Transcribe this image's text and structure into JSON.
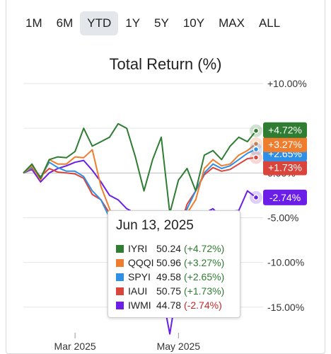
{
  "range_tabs": [
    {
      "label": "1M",
      "active": false
    },
    {
      "label": "6M",
      "active": false
    },
    {
      "label": "YTD",
      "active": true
    },
    {
      "label": "1Y",
      "active": false
    },
    {
      "label": "5Y",
      "active": false
    },
    {
      "label": "10Y",
      "active": false
    },
    {
      "label": "MAX",
      "active": false
    },
    {
      "label": "ALL",
      "active": false
    }
  ],
  "colors": {
    "IYRI": "#2e7d32",
    "QQQI": "#ef7d2e",
    "SPYI": "#2f8fe6",
    "IAUI": "#d9453b",
    "IWMI": "#6a1ee8",
    "grid": "#e6e6e6",
    "positive": "#2e7d32",
    "negative": "#c62828"
  },
  "tooltip": {
    "date": "Jun 13, 2025",
    "rows": [
      {
        "name": "IYRI",
        "value": "50.24",
        "change": "(+4.72%)",
        "tone": "positive"
      },
      {
        "name": "QQQI",
        "value": "50.96",
        "change": "(+3.27%)",
        "tone": "positive"
      },
      {
        "name": "SPYI",
        "value": "49.58",
        "change": "(+2.65%)",
        "tone": "positive"
      },
      {
        "name": "IAUI",
        "value": "50.75",
        "change": "(+1.73%)",
        "tone": "positive"
      },
      {
        "name": "IWMI",
        "value": "44.78",
        "change": "(-2.74%)",
        "tone": "negative"
      }
    ]
  },
  "chart_data": {
    "type": "line",
    "title": "Total Return (%)",
    "xlabel": "",
    "ylabel": "",
    "x_tick_labels": [
      "Mar 2025",
      "May 2025"
    ],
    "y_tick_labels": [
      "+10.00%",
      "0.00%",
      "-5.00%",
      "-10.00%",
      "-15.00%"
    ],
    "y_ticks": [
      10,
      0,
      -5,
      -10,
      -15
    ],
    "ylim": [
      -18.5,
      10
    ],
    "x": [
      "Jan 31",
      "Feb 5",
      "Feb 10",
      "Feb 14",
      "Feb 20",
      "Feb 25",
      "Mar 1",
      "Mar 6",
      "Mar 11",
      "Mar 17",
      "Mar 21",
      "Mar 27",
      "Apr 1",
      "Apr 4",
      "Apr 8",
      "Apr 10",
      "Apr 15",
      "Apr 21",
      "Apr 25",
      "May 1",
      "May 7",
      "May 13",
      "May 19",
      "May 23",
      "May 29",
      "Jun 4",
      "Jun 9",
      "Jun 13"
    ],
    "series": [
      {
        "name": "IYRI",
        "end_label": "+4.72%",
        "values": [
          0,
          1.0,
          -0.6,
          1.5,
          1.8,
          1.7,
          2.4,
          5.0,
          3.0,
          3.5,
          4.0,
          5.5,
          5.0,
          1.8,
          -2.0,
          1.5,
          4.0,
          -4.5,
          -0.8,
          0.5,
          -2.0,
          2.0,
          2.5,
          1.5,
          3.0,
          4.0,
          3.5,
          4.72
        ]
      },
      {
        "name": "QQQI",
        "end_label": "+3.27%",
        "values": [
          0,
          0.8,
          -0.8,
          1.5,
          1.0,
          1.0,
          1.8,
          1.7,
          2.6,
          -1.5,
          -4.0,
          -6.5,
          -5.5,
          -11.0,
          -9.0,
          -7.0,
          -8.0,
          -7.5,
          -6.0,
          -4.5,
          -3.0,
          0.5,
          1.5,
          0.8,
          1.0,
          2.0,
          2.5,
          3.27
        ]
      },
      {
        "name": "SPYI",
        "end_label": "+2.65%",
        "values": [
          0,
          0.6,
          -0.5,
          1.2,
          0.6,
          0.2,
          0.2,
          -0.4,
          -2.0,
          -3.0,
          -5.0,
          -6.0,
          -7.0,
          -10.5,
          -9.5,
          -8.5,
          -9.5,
          -8.0,
          -7.0,
          -4.0,
          -2.0,
          0.0,
          1.0,
          0.5,
          0.8,
          1.5,
          2.2,
          2.65
        ]
      },
      {
        "name": "IAUI",
        "end_label": "+1.73%",
        "values": [
          0,
          0.5,
          -0.4,
          0.5,
          0.1,
          0.0,
          -0.1,
          -0.6,
          -2.4,
          -3.0,
          -4.5,
          -6.0,
          -6.5,
          -11.0,
          -9.0,
          -8.0,
          -9.0,
          -7.5,
          -6.5,
          -3.5,
          -2.0,
          -0.2,
          0.6,
          0.2,
          0.4,
          1.0,
          1.6,
          1.73
        ]
      },
      {
        "name": "IWMI",
        "end_label": "-2.74%",
        "values": [
          0,
          0.4,
          -1.0,
          0.0,
          0.5,
          0.8,
          1.2,
          1.4,
          0.3,
          -1.0,
          -2.5,
          -3.0,
          -4.0,
          -4.5,
          -8.0,
          -10.5,
          -13.0,
          -18.0,
          -12.0,
          -10.0,
          -8.0,
          -4.5,
          -4.0,
          -5.0,
          -4.3,
          -4.2,
          -2.0,
          -2.74
        ]
      }
    ],
    "grid": true,
    "legend": "tooltip"
  }
}
